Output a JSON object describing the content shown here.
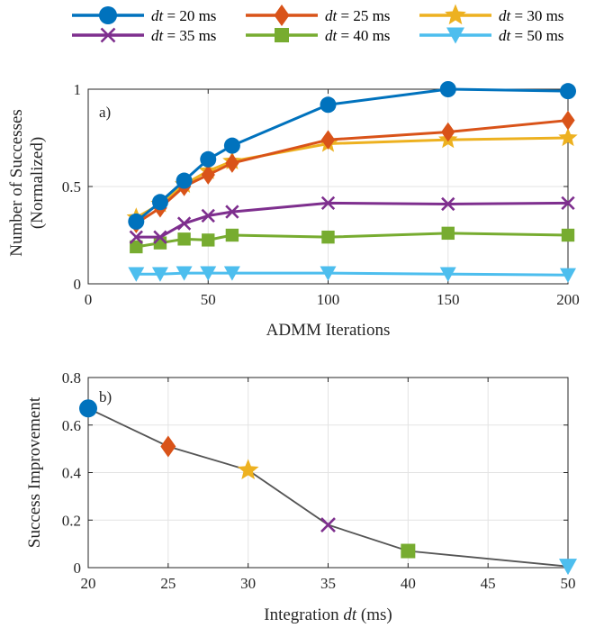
{
  "colors": {
    "dt20": "#0072BD",
    "dt25": "#D95319",
    "dt30": "#EDB120",
    "dt35": "#7E2F8E",
    "dt40": "#77AC30",
    "dt50": "#4DBEEE",
    "connector": "#555555"
  },
  "legend": [
    {
      "label": "dt = 20 ms",
      "marker": "circle",
      "color": "#0072BD"
    },
    {
      "label": "dt = 25 ms",
      "marker": "diamond",
      "color": "#D95319"
    },
    {
      "label": "dt = 30 ms",
      "marker": "star",
      "color": "#EDB120"
    },
    {
      "label": "dt = 35 ms",
      "marker": "x",
      "color": "#7E2F8E"
    },
    {
      "label": "dt = 40 ms",
      "marker": "square",
      "color": "#77AC30"
    },
    {
      "label": "dt = 50 ms",
      "marker": "triangle-down",
      "color": "#4DBEEE"
    }
  ],
  "chart_data": [
    {
      "type": "line",
      "panel_label": "a)",
      "xlabel": "ADMM Iterations",
      "ylabel_line1": "Number of Successes",
      "ylabel_line2": "(Normalized)",
      "xlim": [
        0,
        200
      ],
      "ylim": [
        0,
        1
      ],
      "xticks": [
        0,
        50,
        100,
        150,
        200
      ],
      "yticks": [
        0,
        0.5,
        1
      ],
      "xtick_labels": [
        "0",
        "50",
        "100",
        "150",
        "200"
      ],
      "ytick_labels": [
        "0",
        "0.5",
        "1"
      ],
      "grid": true,
      "x": [
        20,
        30,
        40,
        50,
        60,
        100,
        150,
        200
      ],
      "series": [
        {
          "name": "dt = 20 ms",
          "marker": "circle",
          "color": "#0072BD",
          "values": [
            0.32,
            0.42,
            0.53,
            0.64,
            0.71,
            0.92,
            1.0,
            0.99
          ]
        },
        {
          "name": "dt = 25 ms",
          "marker": "diamond",
          "color": "#D95319",
          "values": [
            0.31,
            0.39,
            0.5,
            0.56,
            0.62,
            0.74,
            0.78,
            0.84
          ]
        },
        {
          "name": "dt = 30 ms",
          "marker": "star",
          "color": "#EDB120",
          "values": [
            0.34,
            0.41,
            0.51,
            0.58,
            0.63,
            0.72,
            0.74,
            0.75
          ]
        },
        {
          "name": "dt = 35 ms",
          "marker": "x",
          "color": "#7E2F8E",
          "values": [
            0.24,
            0.24,
            0.31,
            0.35,
            0.37,
            0.415,
            0.41,
            0.415
          ]
        },
        {
          "name": "dt = 40 ms",
          "marker": "square",
          "color": "#77AC30",
          "values": [
            0.19,
            0.21,
            0.23,
            0.225,
            0.25,
            0.24,
            0.26,
            0.25
          ]
        },
        {
          "name": "dt = 50 ms",
          "marker": "triangle-down",
          "color": "#4DBEEE",
          "values": [
            0.05,
            0.05,
            0.055,
            0.055,
            0.055,
            0.055,
            0.05,
            0.045
          ]
        }
      ]
    },
    {
      "type": "line",
      "panel_label": "b)",
      "xlabel_prefix": "Integration ",
      "xlabel_var": "dt",
      "xlabel_suffix": " (ms)",
      "ylabel": "Success Improvement",
      "xlim": [
        20,
        50
      ],
      "ylim": [
        0,
        0.8
      ],
      "xticks": [
        20,
        25,
        30,
        35,
        40,
        45,
        50
      ],
      "yticks": [
        0,
        0.2,
        0.4,
        0.6,
        0.8
      ],
      "xtick_labels": [
        "20",
        "25",
        "30",
        "35",
        "40",
        "45",
        "50"
      ],
      "ytick_labels": [
        "0",
        "0.2",
        "0.4",
        "0.6",
        "0.8"
      ],
      "grid": true,
      "points": [
        {
          "x": 20,
          "y": 0.67,
          "marker": "circle",
          "color": "#0072BD"
        },
        {
          "x": 25,
          "y": 0.51,
          "marker": "diamond",
          "color": "#D95319"
        },
        {
          "x": 30,
          "y": 0.41,
          "marker": "star",
          "color": "#EDB120"
        },
        {
          "x": 35,
          "y": 0.18,
          "marker": "x",
          "color": "#7E2F8E"
        },
        {
          "x": 40,
          "y": 0.07,
          "marker": "square",
          "color": "#77AC30"
        },
        {
          "x": 50,
          "y": 0.005,
          "marker": "triangle-down",
          "color": "#4DBEEE"
        }
      ]
    }
  ]
}
